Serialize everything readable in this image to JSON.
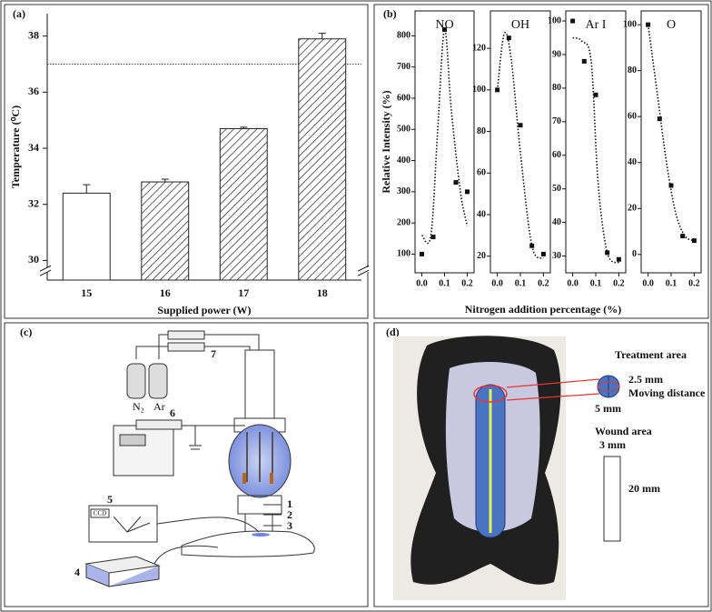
{
  "chart_data": [
    {
      "type": "bar",
      "panel": "(a)",
      "ylabel": "Temperature (⁰C)",
      "xlabel": "Supplied power (W)",
      "categories": [
        "15",
        "16",
        "17",
        "18"
      ],
      "values": [
        32.4,
        32.8,
        34.7,
        37.9
      ],
      "errors": [
        0.3,
        0.1,
        0.05,
        0.2
      ],
      "fills": [
        "plain",
        "hatch",
        "hatch",
        "hatch"
      ],
      "color": "#222222",
      "ylim": [
        29.3,
        38.8
      ],
      "yticks": [
        30,
        32,
        34,
        36,
        38
      ],
      "reference_line": 37,
      "axis_break": true
    },
    {
      "type": "scatter",
      "panel": "(b)",
      "title": "NO",
      "ylabel": "Relative Intensity (%)",
      "xlabel": "Nitrogen addition percentage (%)",
      "x": [
        0,
        0.05,
        0.1,
        0.15,
        0.2
      ],
      "values": [
        100,
        155,
        820,
        330,
        300
      ],
      "curve": {
        "x": [
          0,
          0.04,
          0.07,
          0.1,
          0.13,
          0.17,
          0.2
        ],
        "values": [
          160,
          160,
          500,
          820,
          560,
          300,
          190
        ]
      },
      "xlim": [
        -0.03,
        0.23
      ],
      "xticks": [
        {
          "value": 0,
          "label": "0.0"
        },
        0.1,
        0.2
      ],
      "ylim": [
        40,
        880
      ],
      "yticks": [
        100,
        200,
        300,
        400,
        500,
        600,
        700,
        800
      ]
    },
    {
      "type": "scatter",
      "title": "OH",
      "x": [
        0,
        0.05,
        0.1,
        0.15,
        0.2
      ],
      "values": [
        100,
        125,
        83,
        25,
        21
      ],
      "curve": {
        "x": [
          0,
          0.03,
          0.06,
          0.1,
          0.15,
          0.2
        ],
        "values": [
          100,
          127,
          115,
          70,
          25,
          19
        ]
      },
      "xlim": [
        -0.03,
        0.23
      ],
      "xticks": [
        {
          "value": 0,
          "label": "0.0"
        },
        0.1,
        0.2
      ],
      "ylim": [
        12,
        138
      ],
      "yticks": [
        20,
        40,
        60,
        80,
        100,
        120
      ]
    },
    {
      "type": "scatter",
      "title": "Ar I",
      "x": [
        0,
        0.05,
        0.1,
        0.15,
        0.2
      ],
      "values": [
        100,
        88,
        78,
        31,
        29
      ],
      "curve": {
        "x": [
          0,
          0.04,
          0.08,
          0.11,
          0.15,
          0.2
        ],
        "values": [
          95,
          94,
          88,
          52,
          31,
          28
        ]
      },
      "xlim": [
        -0.03,
        0.23
      ],
      "xticks": [
        {
          "value": 0,
          "label": "0.0"
        },
        0.1,
        0.2
      ],
      "ylim": [
        25,
        103
      ],
      "yticks": [
        30,
        40,
        50,
        60,
        70,
        80,
        90,
        100
      ]
    },
    {
      "type": "scatter",
      "title": "O",
      "x": [
        0,
        0.05,
        0.1,
        0.15,
        0.2
      ],
      "values": [
        100,
        59,
        30,
        8,
        6
      ],
      "curve": {
        "x": [
          0,
          0.04,
          0.08,
          0.12,
          0.16,
          0.2
        ],
        "values": [
          100,
          70,
          40,
          18,
          8,
          6
        ]
      },
      "xlim": [
        -0.03,
        0.23
      ],
      "xticks": [
        {
          "value": 0,
          "label": "0.0"
        },
        0.1,
        0.2
      ],
      "ylim": [
        -8,
        106
      ],
      "yticks": [
        0,
        20,
        40,
        60,
        80,
        100
      ]
    }
  ],
  "setup_diagram": {
    "panel": "(c)",
    "labels": [
      "1",
      "2",
      "3",
      "4",
      "5",
      "6",
      "7"
    ],
    "gases": [
      "N₂",
      "Ar"
    ],
    "camera": "CCD"
  },
  "photo": {
    "panel": "(d)",
    "treatment_area": "Treatment area",
    "spacing": "2.5 mm",
    "moving_distance": "Moving distance",
    "width": "5 mm",
    "wound_area": "Wound area",
    "wound_width": "3 mm",
    "wound_length": "20 mm"
  }
}
